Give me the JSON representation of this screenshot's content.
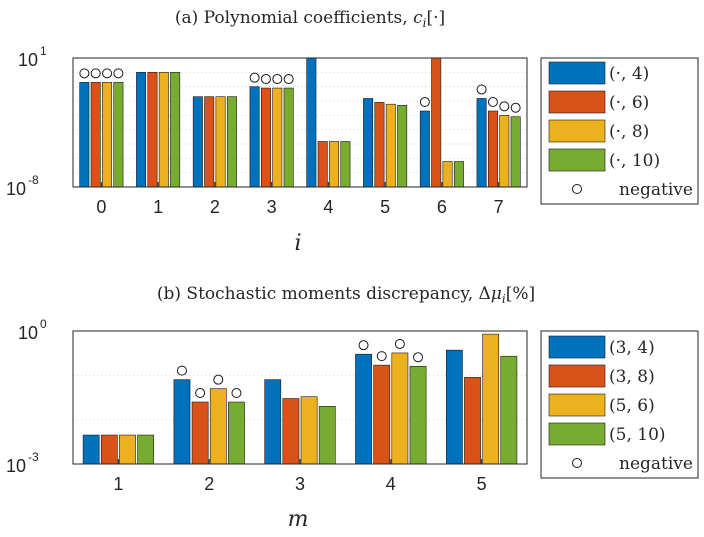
{
  "colors": {
    "series": [
      "#0072BD",
      "#D95319",
      "#EDB120",
      "#77AC30"
    ],
    "axis": "#262626",
    "grid": "#d0d0d0"
  },
  "chart_data": [
    {
      "type": "bar",
      "title": "(a) Polynomial coefficients, c_i[·]",
      "xlabel": "i",
      "ylabel": "",
      "yscale": "log",
      "ylim_exponents": [
        -8,
        1
      ],
      "ytick_labels": [
        {
          "base": "10",
          "exp": "1",
          "value": 10
        },
        {
          "base": "10",
          "exp": "-8",
          "value": 1e-08
        }
      ],
      "grid": "horizontal-minor-dotted",
      "legend_position": "right",
      "categories": [
        "0",
        "1",
        "2",
        "3",
        "4",
        "5",
        "6",
        "7"
      ],
      "series": [
        {
          "name": "(·, 4)",
          "values": [
            0.2,
            1,
            0.02,
            0.1,
            10,
            0.015,
            0.002,
            0.015
          ]
        },
        {
          "name": "(·, 6)",
          "values": [
            0.2,
            1,
            0.02,
            0.08,
            1.5e-05,
            0.008,
            10,
            0.002
          ]
        },
        {
          "name": "(·, 8)",
          "values": [
            0.2,
            1,
            0.02,
            0.08,
            1.5e-05,
            0.006,
            6e-07,
            0.001
          ]
        },
        {
          "name": "(·, 10)",
          "values": [
            0.2,
            1,
            0.02,
            0.08,
            1.5e-05,
            0.005,
            6e-07,
            0.0008
          ]
        }
      ],
      "negative": [
        [
          true,
          false,
          false,
          true,
          false,
          false,
          true,
          true
        ],
        [
          true,
          false,
          false,
          true,
          false,
          false,
          false,
          true
        ],
        [
          true,
          false,
          false,
          true,
          false,
          false,
          false,
          true
        ],
        [
          true,
          false,
          false,
          true,
          false,
          false,
          false,
          true
        ]
      ],
      "legend_negative_label": "negative"
    },
    {
      "type": "bar",
      "title": "(b) Stochastic moments discrepancy, Δμ_i[%]",
      "xlabel": "m",
      "ylabel": "",
      "yscale": "log",
      "ylim_exponents": [
        -3,
        0
      ],
      "ytick_labels": [
        {
          "base": "10",
          "exp": "0",
          "value": 1
        },
        {
          "base": "10",
          "exp": "-3",
          "value": 0.001
        }
      ],
      "grid": "horizontal-minor-dotted",
      "legend_position": "right",
      "categories": [
        "1",
        "2",
        "3",
        "4",
        "5"
      ],
      "series": [
        {
          "name": "(3, 4)",
          "values": [
            0.0045,
            0.08,
            0.08,
            0.3,
            0.37
          ]
        },
        {
          "name": "(3, 8)",
          "values": [
            0.0045,
            0.025,
            0.03,
            0.17,
            0.09
          ]
        },
        {
          "name": "(5, 6)",
          "values": [
            0.0045,
            0.05,
            0.033,
            0.32,
            0.85
          ]
        },
        {
          "name": "(5, 10)",
          "values": [
            0.0045,
            0.025,
            0.02,
            0.16,
            0.27
          ]
        }
      ],
      "negative": [
        [
          false,
          true,
          false,
          true,
          false
        ],
        [
          false,
          true,
          false,
          true,
          false
        ],
        [
          false,
          true,
          false,
          true,
          false
        ],
        [
          false,
          true,
          false,
          true,
          false
        ]
      ],
      "legend_negative_label": "negative"
    }
  ]
}
